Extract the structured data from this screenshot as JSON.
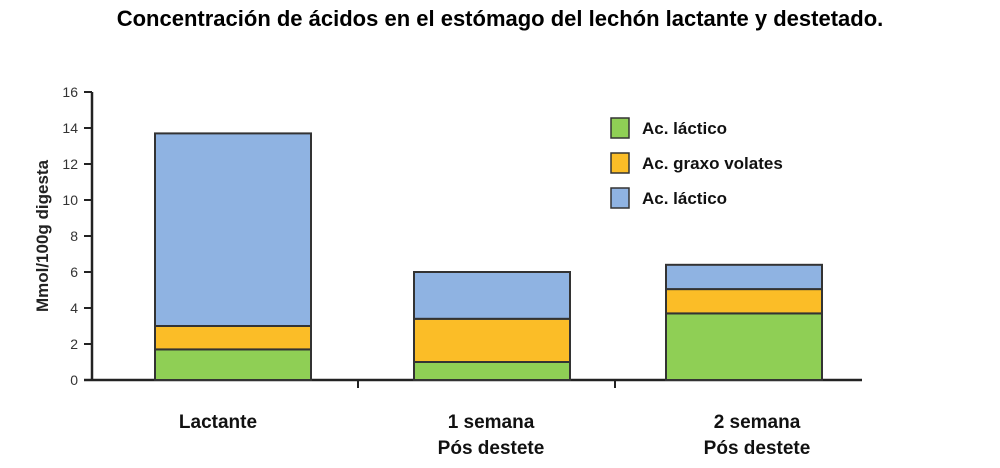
{
  "chart_data": {
    "type": "bar",
    "stacked": true,
    "title": "Concentración de ácidos en el estómago del lechón lactante y destetado.",
    "ylabel": "Mmol/100g digesta",
    "xlabel": "",
    "ylim": [
      0,
      16
    ],
    "yticks": [
      0,
      2,
      4,
      6,
      8,
      10,
      12,
      14,
      16
    ],
    "categories": [
      [
        "Lactante"
      ],
      [
        "1 semana",
        "Pós destete"
      ],
      [
        "2 semana",
        "Pós destete"
      ]
    ],
    "series": [
      {
        "name": "Ac. láctico",
        "color": "#8fcf55",
        "values": [
          1.7,
          1.0,
          3.7
        ]
      },
      {
        "name": "Ac. graxo volates",
        "color": "#fbbd27",
        "values": [
          1.3,
          2.4,
          1.35
        ]
      },
      {
        "name": "Ac. láctico",
        "color": "#8fb3e2",
        "values": [
          10.7,
          2.6,
          1.35
        ]
      }
    ],
    "legend": "top-right",
    "grid": false
  }
}
